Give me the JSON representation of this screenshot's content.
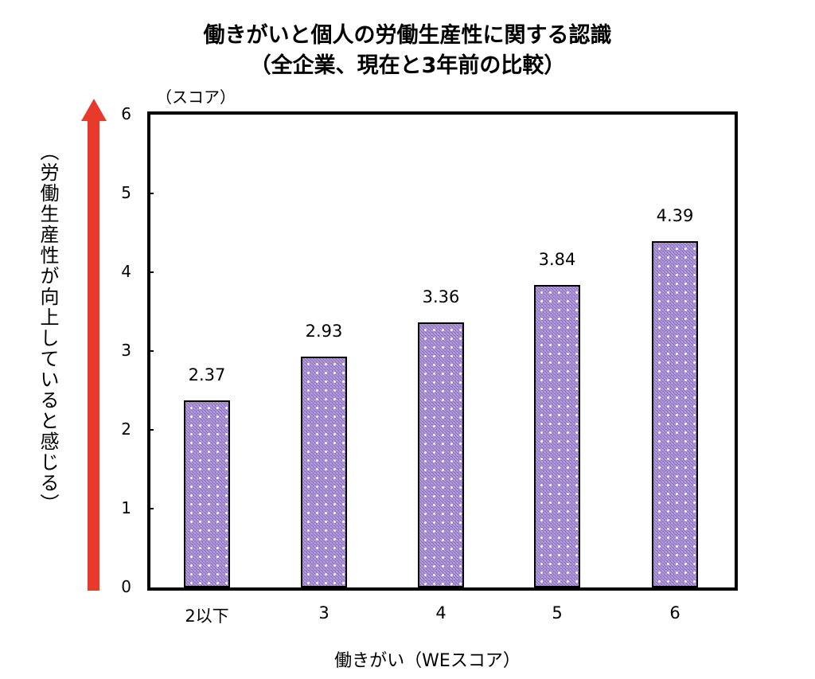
{
  "chart_data": {
    "type": "bar",
    "title": "働きがいと個人の労働生産性に関する認識",
    "subtitle": "（全企業、現在と3年前の比較）",
    "xlabel": "働きがい（WEスコア）",
    "ylabel": "（労働生産性が向上していると感じる）",
    "y_unit": "（スコア）",
    "categories": [
      "2以下",
      "3",
      "4",
      "5",
      "6"
    ],
    "values": [
      2.37,
      2.93,
      3.36,
      3.84,
      4.39
    ],
    "value_labels": [
      "2.37",
      "2.93",
      "3.36",
      "3.84",
      "4.39"
    ],
    "ylim": [
      0,
      6
    ],
    "yticks": [
      "0",
      "1",
      "2",
      "3",
      "4",
      "5",
      "6"
    ],
    "grid": false,
    "legend": null,
    "colors": {
      "bar_fill": "#9b7ec8",
      "arrow": "#e8392b"
    }
  }
}
